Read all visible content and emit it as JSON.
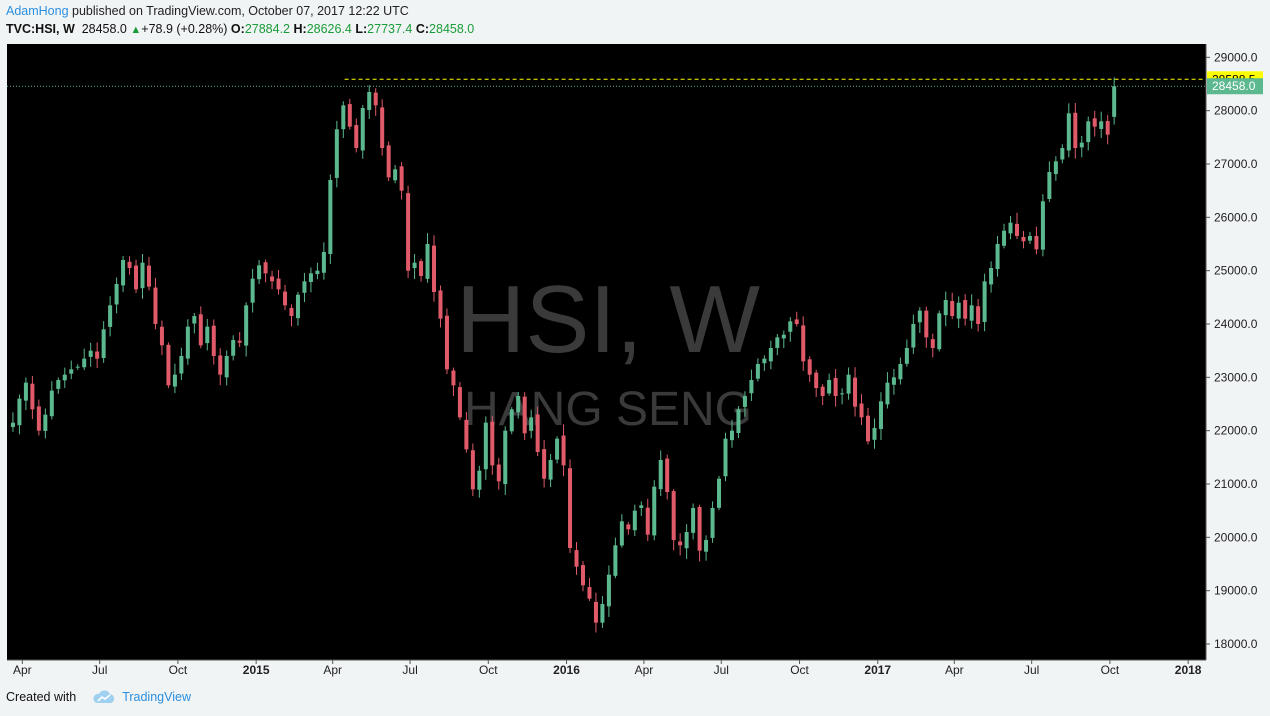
{
  "header": {
    "author": "AdamHong",
    "published_text": "published on TradingView.com, October 07, 2017 12:22 UTC",
    "symbol_line": "TVC:HSI, W",
    "last": "28458.0",
    "change": "+78.9 (+0.28%)",
    "o_label": "O:",
    "o_val": "27884.2",
    "h_label": "H:",
    "h_val": "28626.4",
    "l_label": "L:",
    "l_val": "27737.4",
    "c_label": "C:",
    "c_val": "28458.0"
  },
  "footer": {
    "created_with": "Created with",
    "brand": "TradingView"
  },
  "watermark": {
    "main": "HSI, W",
    "sub": "HANG SENG"
  },
  "colors": {
    "up": "#5cb98f",
    "down": "#e05a6a",
    "background": "#000000",
    "price_label_yellow": "#ffff00",
    "price_label_green": "#5cb98f",
    "watermark": "#3a3a3a"
  },
  "chart_data": {
    "type": "candlestick",
    "symbol": "TVC:HSI",
    "interval": "W",
    "y_ticks": [
      18000,
      19000,
      20000,
      21000,
      22000,
      23000,
      24000,
      25000,
      26000,
      27000,
      28000,
      29000
    ],
    "y_tick_labels": [
      "18000.0",
      "19000.0",
      "20000.0",
      "21000.0",
      "22000.0",
      "23000.0",
      "24000.0",
      "25000.0",
      "26000.0",
      "27000.0",
      "28000.0",
      "29000.0"
    ],
    "ylim": [
      17700,
      29250
    ],
    "x_ticks": [
      {
        "label": "Apr",
        "date": "2014-04-01",
        "bold": false
      },
      {
        "label": "Jul",
        "date": "2014-07-01",
        "bold": false
      },
      {
        "label": "Oct",
        "date": "2014-10-01",
        "bold": false
      },
      {
        "label": "2015",
        "date": "2015-01-01",
        "bold": true
      },
      {
        "label": "Apr",
        "date": "2015-04-01",
        "bold": false
      },
      {
        "label": "Jul",
        "date": "2015-07-01",
        "bold": false
      },
      {
        "label": "Oct",
        "date": "2015-10-01",
        "bold": false
      },
      {
        "label": "2016",
        "date": "2016-01-01",
        "bold": true
      },
      {
        "label": "Apr",
        "date": "2016-04-01",
        "bold": false
      },
      {
        "label": "Jul",
        "date": "2016-07-01",
        "bold": false
      },
      {
        "label": "Oct",
        "date": "2016-10-01",
        "bold": false
      },
      {
        "label": "2017",
        "date": "2017-01-01",
        "bold": true
      },
      {
        "label": "Apr",
        "date": "2017-04-01",
        "bold": false
      },
      {
        "label": "Jul",
        "date": "2017-07-01",
        "bold": false
      },
      {
        "label": "Oct",
        "date": "2017-10-01",
        "bold": false
      },
      {
        "label": "2018",
        "date": "2018-01-01",
        "bold": true
      }
    ],
    "xlim": [
      "2014-03-14",
      "2018-01-22"
    ],
    "horizontal_lines": [
      {
        "value": 28588.5,
        "label": "28588.5",
        "style": "dashed",
        "color": "#ffff00"
      },
      {
        "value": 28458.0,
        "label": "28458.0",
        "style": "dotted",
        "color": "#5cb98f"
      }
    ],
    "closes": [
      22150,
      22600,
      22900,
      22400,
      22000,
      22300,
      22750,
      22950,
      23050,
      23150,
      23200,
      23350,
      23500,
      23350,
      23900,
      24350,
      24750,
      25200,
      25050,
      24650,
      25150,
      24700,
      24000,
      23600,
      22850,
      23050,
      23400,
      23950,
      24150,
      23600,
      23950,
      23400,
      23050,
      23400,
      23700,
      23650,
      24350,
      24850,
      25100,
      24950,
      24800,
      24650,
      24350,
      24150,
      24550,
      24800,
      24950,
      25000,
      25350,
      26700,
      27650,
      28100,
      27700,
      27300,
      28050,
      28350,
      28100,
      27300,
      26750,
      26900,
      26500,
      25000,
      25150,
      24900,
      25500,
      24600,
      24100,
      23150,
      22850,
      22250,
      21650,
      20900,
      21250,
      22150,
      21350,
      21050,
      22000,
      22400,
      22650,
      21950,
      22250,
      21600,
      21100,
      21450,
      21850,
      21350,
      19800,
      19450,
      19100,
      18850,
      18400,
      18750,
      19300,
      19850,
      20300,
      20150,
      20500,
      20600,
      20050,
      20950,
      21450,
      20850,
      19950,
      19850,
      20100,
      20550,
      19750,
      19950,
      20550,
      21100,
      21850,
      22000,
      22400,
      22650,
      22950,
      23250,
      23350,
      23550,
      23750,
      23800,
      24050,
      24000,
      23300,
      23050,
      22800,
      22650,
      22950,
      22650,
      22700,
      23050,
      22450,
      22250,
      21800,
      22050,
      22550,
      22900,
      23000,
      23250,
      23550,
      24000,
      24250,
      23750,
      23550,
      24200,
      24450,
      24150,
      24400,
      24100,
      24350,
      24000,
      24800,
      25050,
      25500,
      25750,
      25900,
      25650,
      25550,
      25650,
      25400,
      26300,
      26850,
      27050,
      27300,
      27950,
      27300,
      27400,
      27800,
      27700,
      27800,
      27550,
      28450
    ],
    "first_candle_date": "2014-03-21",
    "last_candle_date": "2017-10-06",
    "last_bar": {
      "open": 27884.2,
      "high": 28626.4,
      "low": 27737.4,
      "close": 28458.0
    }
  }
}
